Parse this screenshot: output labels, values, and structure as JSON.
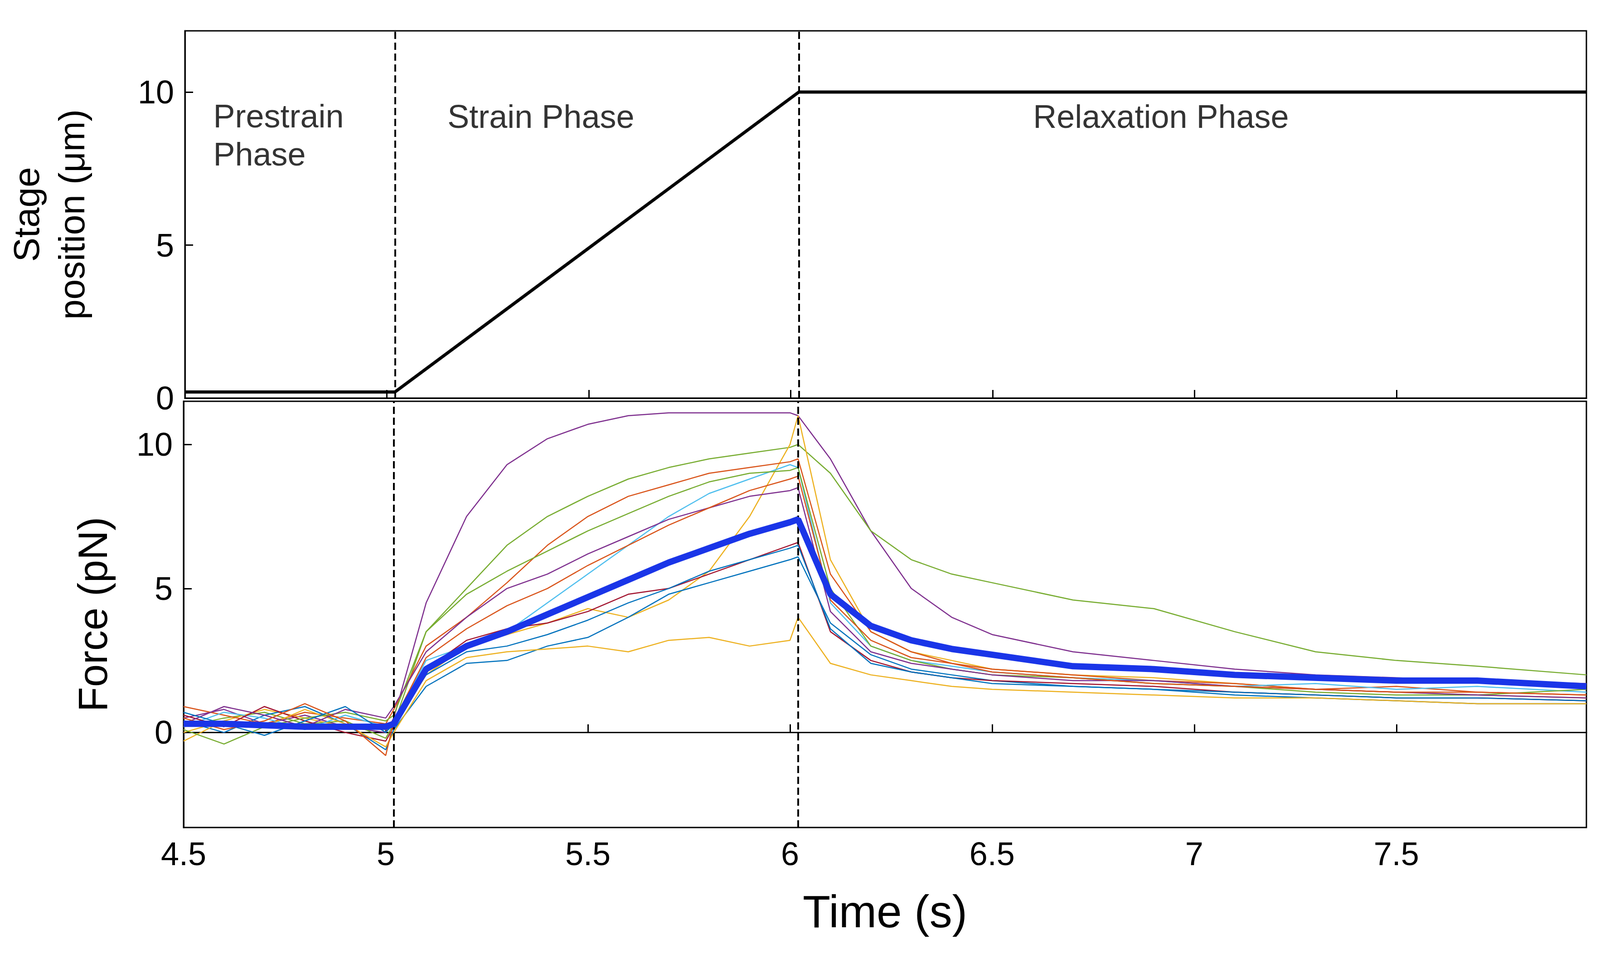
{
  "chart_data": [
    {
      "type": "line",
      "y_label": "Stage position (μm)",
      "x": [
        4.5,
        5.02,
        6.02,
        7.97
      ],
      "series": [
        {
          "color": "#000000",
          "values": [
            0.2,
            0.2,
            10,
            10
          ]
        }
      ],
      "xlim": [
        4.5,
        7.97
      ],
      "xticks": [
        4.5,
        5,
        5.5,
        6,
        6.5,
        7,
        7.5
      ],
      "ylim": [
        0,
        12
      ],
      "yticks": [
        0,
        5,
        10
      ],
      "tick_labels": "y",
      "vlines": [
        5.02,
        6.02
      ],
      "annotations": [
        {
          "text": "Prestrain Phase",
          "x": 4.57,
          "y": 8.6
        },
        {
          "text": "Strain Phase",
          "x": 5.15,
          "y": 9.2
        },
        {
          "text": "Relaxation Phase",
          "x": 6.6,
          "y": 9.2
        }
      ]
    },
    {
      "type": "line",
      "x_label": "Time (s)",
      "y_label": "Force (pN)",
      "x": [
        4.5,
        4.6,
        4.7,
        4.8,
        4.9,
        5.0,
        5.02,
        5.1,
        5.2,
        5.3,
        5.4,
        5.5,
        5.6,
        5.7,
        5.8,
        5.9,
        6.0,
        6.02,
        6.1,
        6.2,
        6.3,
        6.4,
        6.5,
        6.7,
        6.9,
        7.1,
        7.3,
        7.5,
        7.7,
        7.97
      ],
      "series": [
        {
          "color": "#7E2F8E",
          "values": [
            0.5,
            0.8,
            0.3,
            0.6,
            0.2,
            0.0,
            0.5,
            4.5,
            7.5,
            9.3,
            10.2,
            10.7,
            11.0,
            11.1,
            11.1,
            11.1,
            11.1,
            11.0,
            9.5,
            7.0,
            5.0,
            4.0,
            3.4,
            2.8,
            2.5,
            2.2,
            2.0,
            1.9,
            1.8,
            1.7
          ]
        },
        {
          "color": "#77AC30",
          "values": [
            0.2,
            0.5,
            0.7,
            0.3,
            0.4,
            -0.2,
            0.3,
            3.5,
            5.0,
            6.5,
            7.5,
            8.2,
            8.8,
            9.2,
            9.5,
            9.7,
            9.9,
            10.0,
            9.0,
            7.0,
            6.0,
            5.5,
            5.2,
            4.6,
            4.3,
            3.5,
            2.8,
            2.5,
            2.3,
            2.0
          ]
        },
        {
          "color": "#EDB120",
          "values": [
            0.0,
            0.4,
            0.8,
            0.5,
            0.2,
            0.1,
            0.2,
            2.0,
            3.0,
            3.4,
            3.8,
            4.3,
            4.0,
            4.6,
            5.6,
            7.5,
            10.0,
            11.0,
            6.0,
            3.5,
            2.8,
            2.5,
            2.2,
            2.0,
            1.9,
            1.7,
            1.5,
            1.4,
            1.3,
            1.2
          ]
        },
        {
          "color": "#0072BD",
          "values": [
            0.4,
            0.0,
            0.6,
            0.9,
            0.3,
            -0.6,
            0.1,
            1.6,
            2.4,
            2.5,
            3.0,
            3.3,
            4.0,
            4.8,
            5.2,
            5.6,
            6.0,
            6.1,
            3.8,
            2.7,
            2.2,
            2.0,
            1.8,
            1.6,
            1.5,
            1.3,
            1.2,
            1.1,
            1.0,
            1.0
          ]
        },
        {
          "color": "#D95319",
          "values": [
            0.9,
            0.6,
            0.3,
            0.7,
            0.5,
            0.3,
            0.8,
            3.0,
            4.0,
            5.2,
            6.5,
            7.5,
            8.2,
            8.6,
            9.0,
            9.2,
            9.4,
            9.5,
            5.5,
            3.5,
            2.8,
            2.4,
            2.2,
            2.0,
            1.8,
            1.7,
            1.5,
            1.6,
            1.4,
            1.3
          ]
        },
        {
          "color": "#4DBEEE",
          "values": [
            0.2,
            0.7,
            0.5,
            0.1,
            0.6,
            0.2,
            0.4,
            2.5,
            3.0,
            3.5,
            4.5,
            5.5,
            6.5,
            7.5,
            8.3,
            8.8,
            9.3,
            9.2,
            4.5,
            3.0,
            2.5,
            2.3,
            2.1,
            1.9,
            1.8,
            1.6,
            1.7,
            1.5,
            1.6,
            1.4
          ]
        },
        {
          "color": "#A2142F",
          "values": [
            0.6,
            0.2,
            0.9,
            0.4,
            0.0,
            -0.3,
            0.2,
            2.2,
            3.2,
            3.6,
            3.8,
            4.2,
            4.8,
            5.0,
            5.5,
            6.0,
            6.5,
            6.6,
            3.5,
            2.5,
            2.1,
            1.9,
            1.8,
            1.7,
            1.6,
            1.4,
            1.3,
            1.2,
            1.2,
            1.1
          ]
        },
        {
          "color": "#EDB120",
          "values": [
            -0.3,
            0.4,
            0.2,
            0.8,
            0.3,
            -0.5,
            0.0,
            1.8,
            2.6,
            2.8,
            2.9,
            3.0,
            2.8,
            3.2,
            3.3,
            3.0,
            3.2,
            4.0,
            2.4,
            2.0,
            1.8,
            1.6,
            1.5,
            1.4,
            1.3,
            1.2,
            1.2,
            1.1,
            1.0,
            1.0
          ]
        },
        {
          "color": "#77AC30",
          "values": [
            0.1,
            -0.4,
            0.2,
            0.5,
            0.7,
            0.4,
            0.6,
            3.5,
            4.8,
            5.6,
            6.3,
            7.0,
            7.6,
            8.2,
            8.7,
            9.0,
            9.1,
            9.2,
            5.0,
            3.0,
            2.5,
            2.2,
            2.0,
            1.9,
            1.7,
            1.6,
            1.4,
            1.3,
            1.3,
            1.5
          ]
        },
        {
          "color": "#7E2F8E",
          "values": [
            0.3,
            0.9,
            0.6,
            0.2,
            0.8,
            0.5,
            0.9,
            2.8,
            4.0,
            5.0,
            5.5,
            6.2,
            6.8,
            7.4,
            7.8,
            8.2,
            8.4,
            8.5,
            4.2,
            2.8,
            2.4,
            2.2,
            2.0,
            1.8,
            1.8,
            1.6,
            1.5,
            1.4,
            1.3,
            1.2
          ]
        },
        {
          "color": "#0072BD",
          "values": [
            0.7,
            0.3,
            -0.1,
            0.4,
            0.9,
            0.0,
            0.3,
            2.0,
            2.8,
            3.0,
            3.4,
            3.9,
            4.5,
            5.0,
            5.6,
            6.0,
            6.4,
            6.5,
            3.6,
            2.4,
            2.1,
            1.9,
            1.7,
            1.6,
            1.5,
            1.4,
            1.3,
            1.2,
            1.2,
            1.1
          ]
        },
        {
          "color": "#D95319",
          "values": [
            0.5,
            0.1,
            0.4,
            1.0,
            0.4,
            -0.8,
            0.4,
            2.6,
            3.6,
            4.4,
            5.0,
            5.8,
            6.5,
            7.2,
            7.8,
            8.4,
            8.8,
            8.9,
            4.6,
            3.2,
            2.6,
            2.4,
            2.1,
            1.9,
            1.7,
            1.6,
            1.5,
            1.4,
            1.4,
            1.3
          ]
        },
        {
          "color": "#1a35e8",
          "values": [
            0.3,
            0.3,
            0.25,
            0.2,
            0.2,
            0.2,
            0.3,
            2.2,
            3.0,
            3.5,
            4.1,
            4.7,
            5.3,
            5.9,
            6.4,
            6.9,
            7.3,
            7.4,
            4.8,
            3.7,
            3.2,
            2.9,
            2.7,
            2.3,
            2.2,
            2.0,
            1.9,
            1.8,
            1.8,
            1.6
          ]
        }
      ],
      "xlim": [
        4.5,
        7.97
      ],
      "xticks": [
        4.5,
        5,
        5.5,
        6,
        6.5,
        7,
        7.5
      ],
      "ylim": [
        -3.3,
        11.5
      ],
      "yticks": [
        0,
        5,
        10
      ],
      "vlines": [
        5.02,
        6.02
      ]
    }
  ]
}
